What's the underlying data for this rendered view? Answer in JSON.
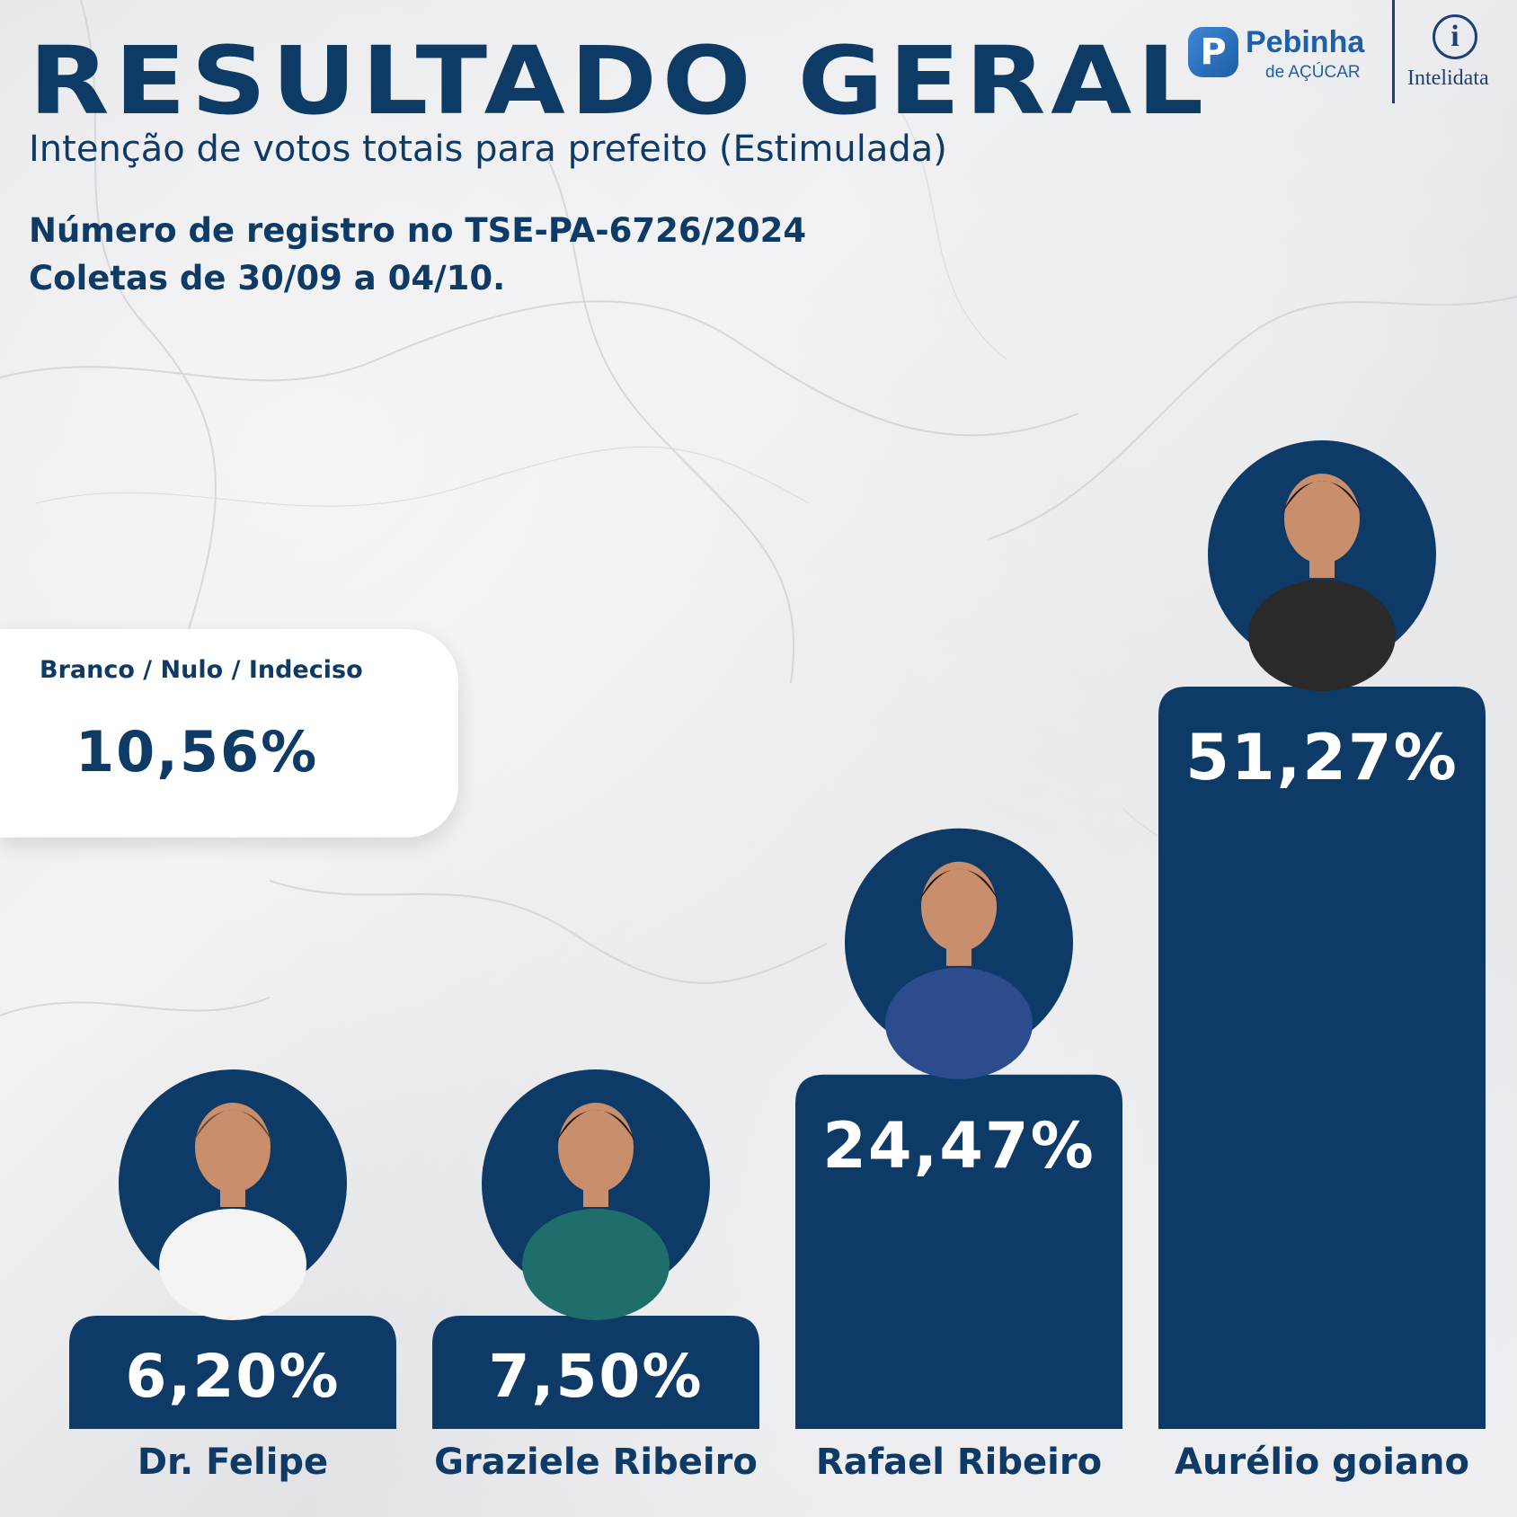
{
  "header": {
    "title": "RESULTADO GERAL",
    "subtitle": "Intenção de votos totais para prefeito (Estimulada)",
    "registry": "Número de registro no TSE-PA-6726/2024",
    "collection": "Coletas de 30/09 a 04/10."
  },
  "logos": {
    "pebinha_mark": "P",
    "pebinha_name": "Pebinha",
    "pebinha_sub": "de AÇÚCAR",
    "intelidata_mark": "i",
    "intelidata_name": "Intelidata"
  },
  "blank_null_undecided": {
    "label": "Branco / Nulo / Indeciso",
    "value": "10,56%"
  },
  "colors": {
    "bar": "#0d3a66",
    "text": "#0e3a66",
    "photo_bg": "#0d3a66"
  },
  "chart_data": {
    "type": "bar",
    "categories": [
      "Dr. Felipe",
      "Graziele Ribeiro",
      "Rafael Ribeiro",
      "Aurélio goiano"
    ],
    "values": [
      6.2,
      7.5,
      24.47,
      51.27
    ],
    "value_labels": [
      "6,20%",
      "7,50%",
      "24,47%",
      "51,27%"
    ],
    "title": "RESULTADO GERAL",
    "xlabel": "",
    "ylabel": "",
    "grid": false,
    "legend": "none",
    "candidate_photos": [
      "doctor-portrait",
      "woman-portrait",
      "man-in-suit-portrait",
      "man-in-vest-portrait"
    ]
  }
}
